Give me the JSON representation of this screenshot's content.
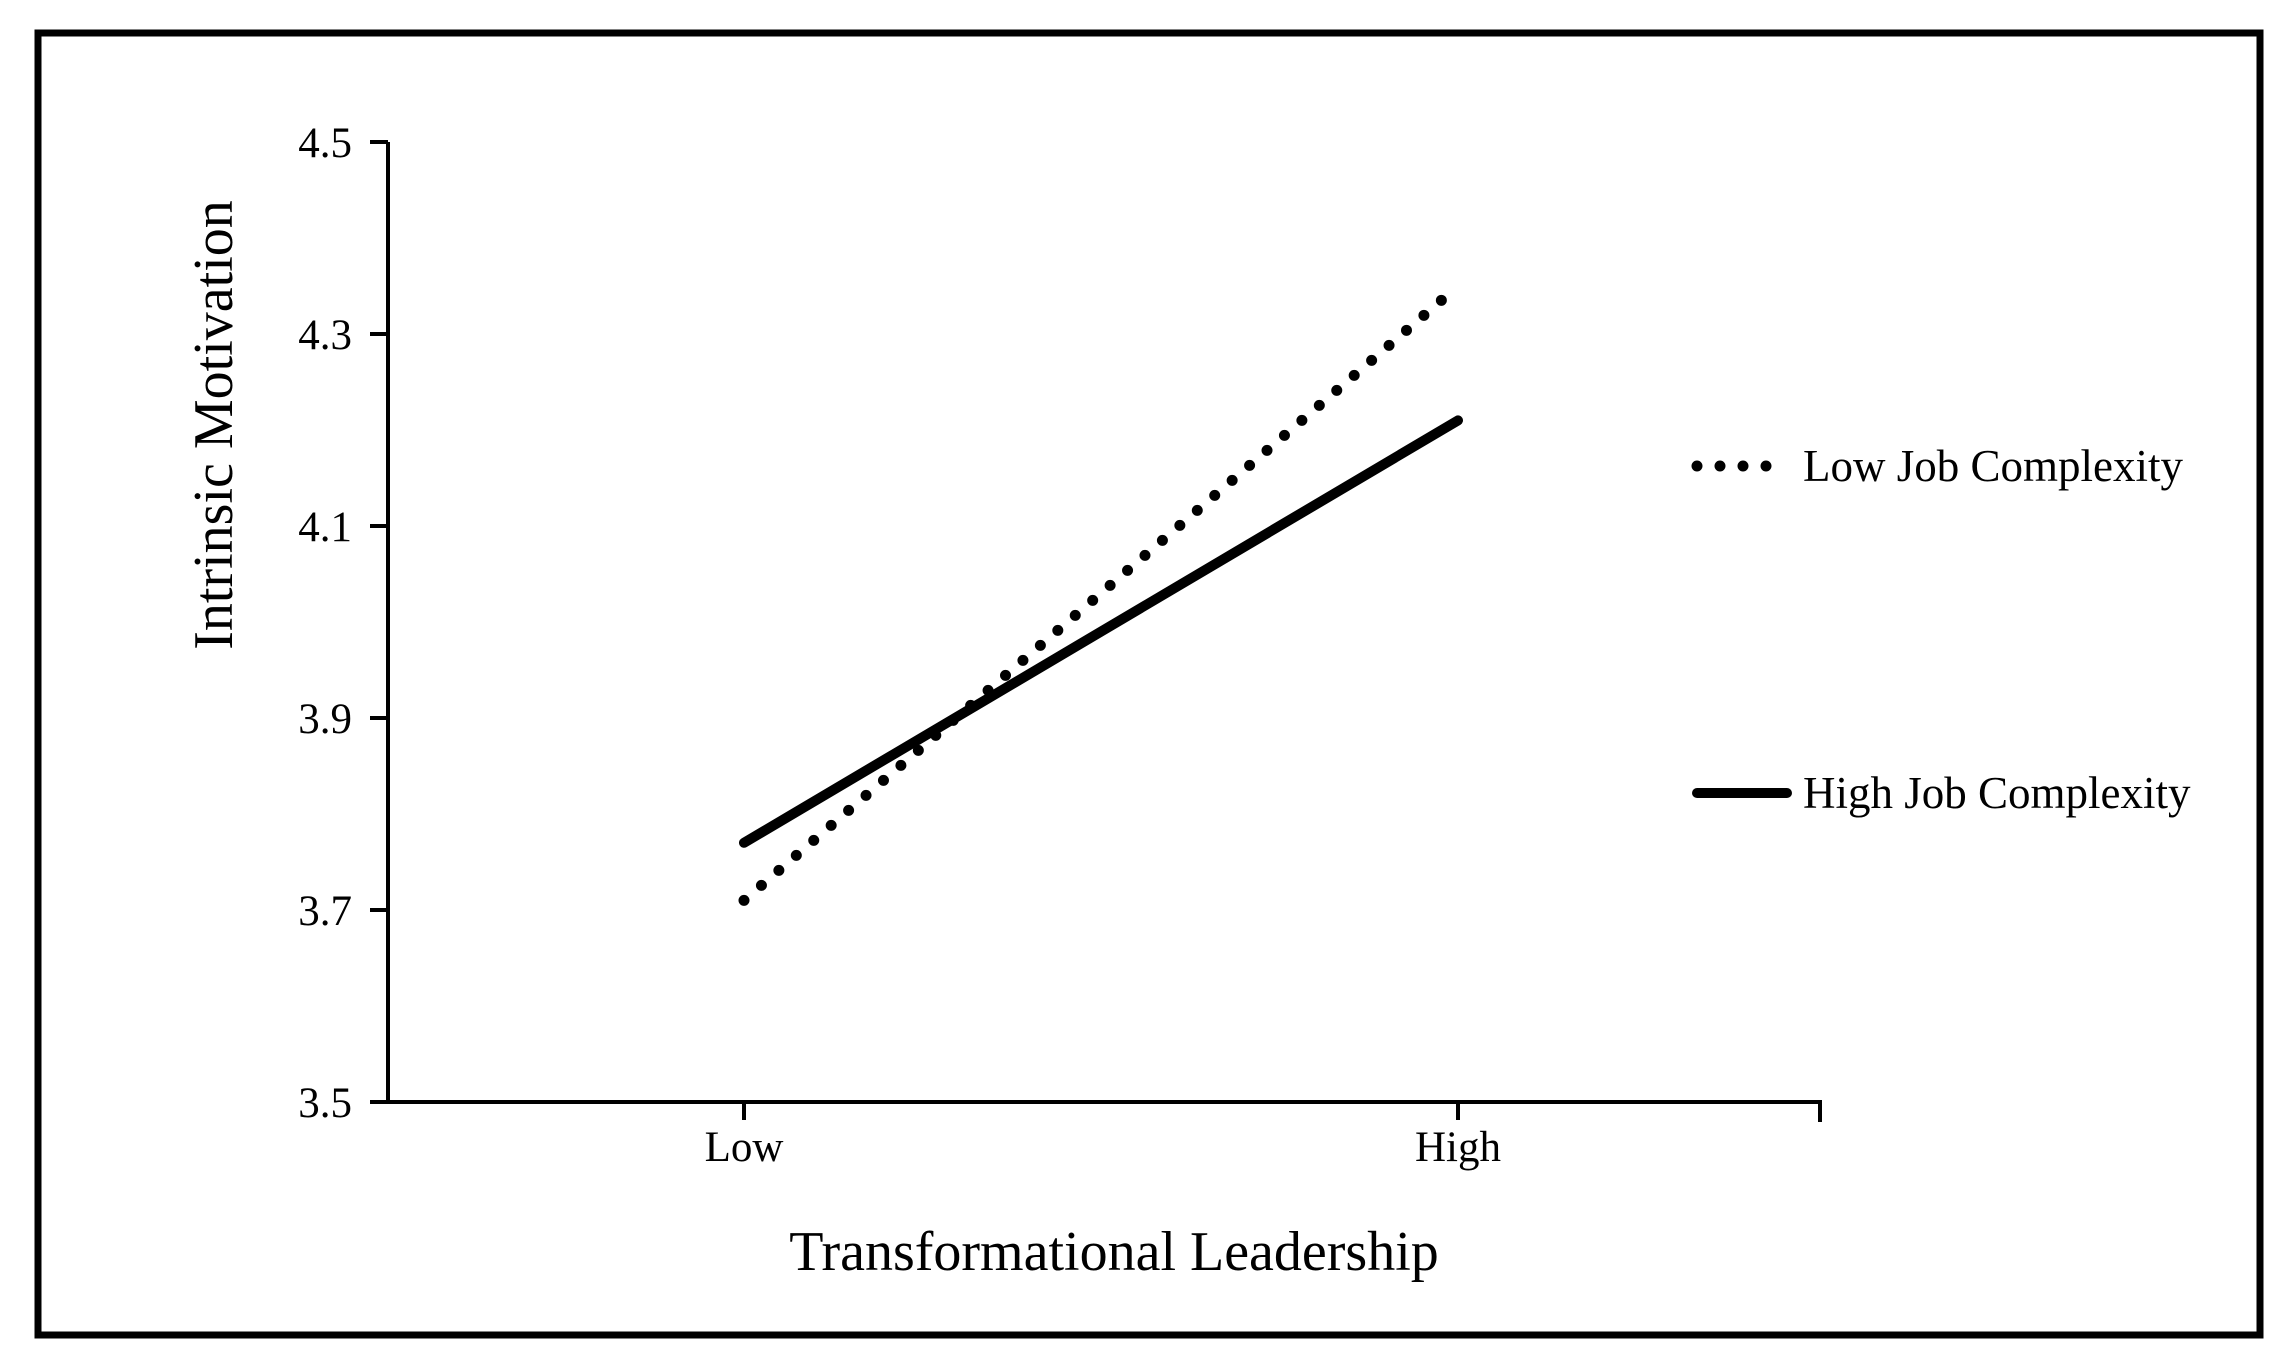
{
  "chart_data": {
    "type": "line",
    "title": "",
    "xlabel": "Transformational Leadership",
    "ylabel": "Intrinsic Motivation",
    "categories": [
      "Low",
      "High"
    ],
    "ylim": [
      3.5,
      4.5
    ],
    "yticks": [
      "3.5",
      "3.7",
      "3.9",
      "4.1",
      "4.3",
      "4.5"
    ],
    "grid": false,
    "legend_position": "right",
    "series": [
      {
        "name": "Low Job Complexity",
        "values": [
          3.71,
          4.35
        ],
        "style": "dotted",
        "color": "#000000"
      },
      {
        "name": "High Job Complexity",
        "values": [
          3.77,
          4.21
        ],
        "style": "solid",
        "color": "#000000"
      }
    ]
  }
}
